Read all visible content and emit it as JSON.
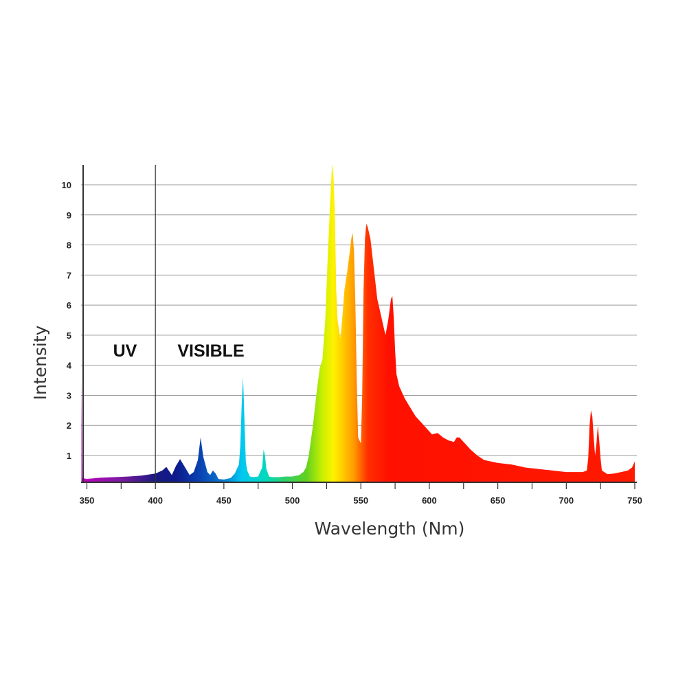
{
  "chart_data": {
    "type": "area",
    "xlabel": "Wavelength (Nm)",
    "ylabel": "Intensity",
    "xlim": [
      345,
      751
    ],
    "ylim": [
      0,
      10.7
    ],
    "x_ticks": [
      350,
      400,
      450,
      500,
      550,
      600,
      650,
      700,
      750
    ],
    "x_tick_labels": [
      "350",
      "400",
      "450",
      "500",
      "550",
      "600",
      "650",
      "700",
      "750"
    ],
    "y_ticks": [
      1,
      2,
      3,
      4,
      5,
      6,
      7,
      8,
      9,
      10
    ],
    "y_tick_labels": [
      "1",
      "2",
      "3",
      "4",
      "5",
      "6",
      "7",
      "8",
      "9",
      "10"
    ],
    "grid": true,
    "annotations": [
      "UV",
      "VISIBLE"
    ],
    "divider_x": 400,
    "series": [
      {
        "x": [
          346,
          346,
          346.5,
          350,
          360,
          370,
          380,
          390,
          400,
          405,
          408,
          412,
          415,
          418,
          421,
          425,
          428,
          431,
          433,
          435,
          438,
          440,
          442,
          444,
          446,
          450,
          455,
          458,
          461,
          462,
          463,
          464,
          465,
          466,
          467,
          469,
          472,
          475,
          478,
          479,
          480,
          481,
          483,
          485,
          490,
          495,
          500,
          505,
          508,
          510,
          512,
          515,
          518,
          520,
          522,
          524,
          526,
          528,
          529,
          530,
          531,
          532,
          533,
          535,
          536,
          538,
          540,
          542,
          543,
          544,
          545,
          546,
          547,
          548,
          549,
          550,
          551,
          552,
          553,
          554,
          555,
          556,
          557,
          558,
          560,
          562,
          564,
          566,
          568,
          570,
          572,
          573,
          574,
          575,
          576,
          578,
          582,
          586,
          590,
          594,
          598,
          602,
          606,
          610,
          614,
          618,
          620,
          622,
          626,
          630,
          635,
          640,
          645,
          650,
          660,
          670,
          680,
          690,
          700,
          708,
          712,
          715,
          716,
          717,
          718,
          719,
          720,
          721,
          722,
          723,
          724,
          725,
          726,
          730,
          735,
          740,
          745,
          748,
          750,
          750
        ],
        "values": [
          0,
          3.5,
          0.25,
          0.22,
          0.26,
          0.28,
          0.3,
          0.33,
          0.4,
          0.5,
          0.62,
          0.35,
          0.65,
          0.88,
          0.65,
          0.35,
          0.45,
          0.85,
          1.6,
          0.95,
          0.45,
          0.35,
          0.5,
          0.4,
          0.22,
          0.2,
          0.25,
          0.4,
          0.7,
          1.3,
          2.7,
          3.6,
          2.2,
          0.8,
          0.5,
          0.3,
          0.28,
          0.3,
          0.6,
          1.2,
          1.0,
          0.55,
          0.3,
          0.28,
          0.28,
          0.3,
          0.3,
          0.35,
          0.45,
          0.6,
          1.0,
          2.0,
          3.2,
          3.9,
          4.2,
          5.5,
          7.8,
          9.8,
          10.7,
          10.3,
          9.0,
          6.5,
          5.5,
          4.9,
          5.3,
          6.5,
          7.1,
          7.8,
          8.2,
          8.4,
          7.8,
          6.0,
          3.5,
          1.6,
          1.5,
          1.4,
          3.0,
          6.5,
          8.2,
          8.7,
          8.6,
          8.4,
          8.2,
          7.8,
          7.0,
          6.2,
          5.8,
          5.4,
          5.0,
          5.5,
          6.2,
          6.3,
          5.6,
          4.5,
          3.7,
          3.3,
          2.9,
          2.6,
          2.3,
          2.1,
          1.9,
          1.7,
          1.75,
          1.6,
          1.5,
          1.45,
          1.6,
          1.6,
          1.4,
          1.2,
          1.0,
          0.85,
          0.8,
          0.75,
          0.7,
          0.6,
          0.55,
          0.5,
          0.45,
          0.45,
          0.45,
          0.5,
          0.9,
          2.0,
          2.5,
          2.3,
          1.6,
          1.0,
          1.4,
          2.0,
          1.5,
          0.9,
          0.5,
          0.38,
          0.4,
          0.45,
          0.5,
          0.6,
          0.8,
          0
        ]
      }
    ],
    "spectrum_colors": [
      {
        "x": 346,
        "color": "#c000c0"
      },
      {
        "x": 375,
        "color": "#7a1aa0"
      },
      {
        "x": 400,
        "color": "#1a1a80"
      },
      {
        "x": 415,
        "color": "#0d1a8c"
      },
      {
        "x": 432,
        "color": "#0a40b0"
      },
      {
        "x": 450,
        "color": "#0a7ad0"
      },
      {
        "x": 463,
        "color": "#00c8f0"
      },
      {
        "x": 480,
        "color": "#00d8c0"
      },
      {
        "x": 495,
        "color": "#30d068"
      },
      {
        "x": 510,
        "color": "#60d020"
      },
      {
        "x": 522,
        "color": "#c8f000"
      },
      {
        "x": 530,
        "color": "#fff200"
      },
      {
        "x": 545,
        "color": "#ff9a00"
      },
      {
        "x": 555,
        "color": "#ff3000"
      },
      {
        "x": 570,
        "color": "#ff1000"
      },
      {
        "x": 751,
        "color": "#ff1a00"
      }
    ]
  }
}
